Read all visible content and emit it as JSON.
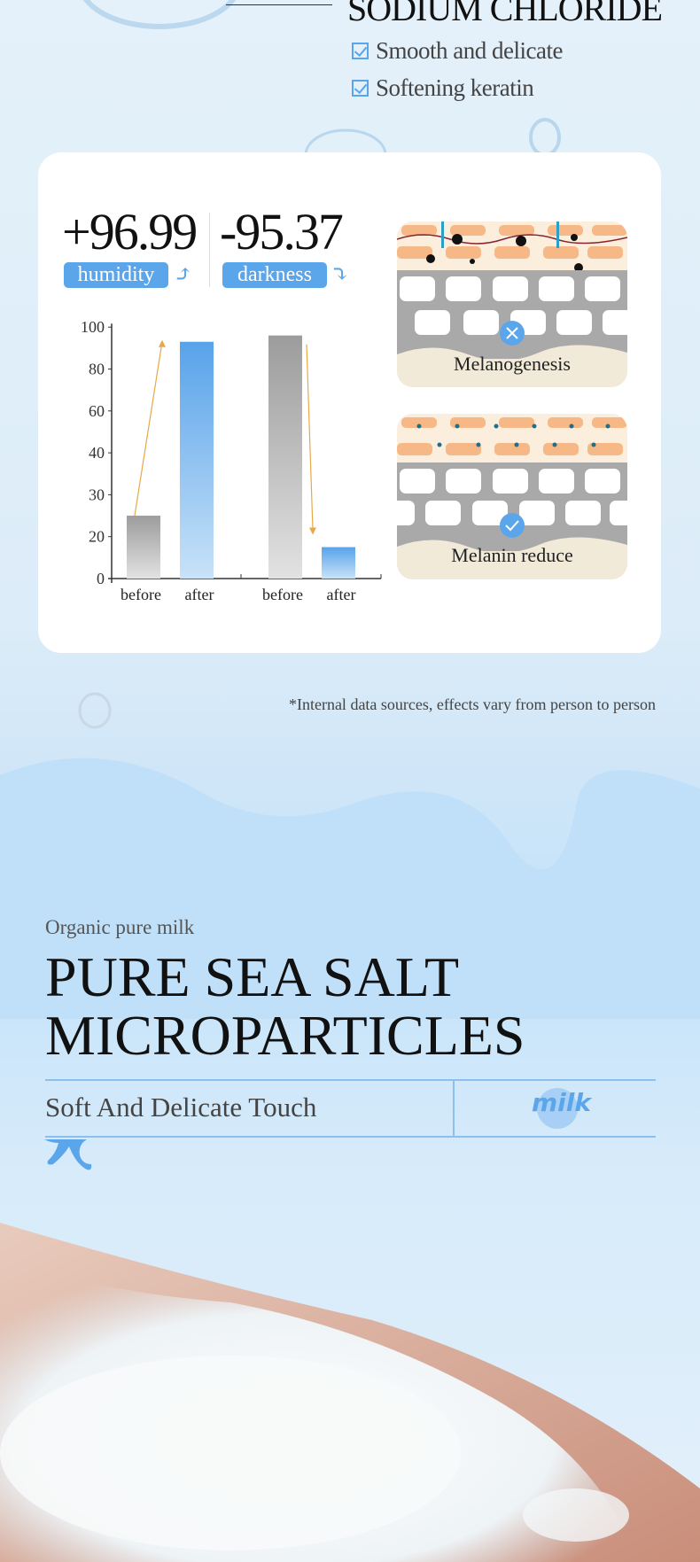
{
  "header": {
    "title": "SODIUM CHLORIDE",
    "bullets": [
      "Smooth and delicate",
      "Softening keratin"
    ]
  },
  "stats": [
    {
      "value": "+96.99",
      "label": "humidity",
      "direction": "up"
    },
    {
      "value": "-95.37",
      "label": "darkness",
      "direction": "down"
    }
  ],
  "chart_data": {
    "type": "bar",
    "yticks": [
      0,
      20,
      30,
      40,
      60,
      80,
      100
    ],
    "ylim": [
      0,
      100
    ],
    "groups": [
      {
        "categories": [
          "before",
          "after"
        ],
        "values": [
          25,
          93
        ]
      },
      {
        "categories": [
          "before",
          "after"
        ],
        "values": [
          96,
          15
        ]
      }
    ],
    "colors": {
      "before": "#a0a0a0",
      "after": "#5ba6ea",
      "arrow": "#e8a84a"
    },
    "grid": false
  },
  "illustrations": [
    {
      "label": "Melanogenesis",
      "status_icon": "x-icon"
    },
    {
      "label": "Melanin reduce",
      "status_icon": "check-icon"
    }
  ],
  "footnote": "*Internal data sources, effects vary from person to person",
  "section": {
    "eyebrow": "Organic pure milk",
    "title_line1": "PURE SEA SALT",
    "title_line2": "MICROPARTICLES",
    "subtitle": "Soft And Delicate Touch",
    "logo_text": "milk"
  },
  "colors": {
    "accent": "#5ba6ea",
    "wave": "#bfe0f8"
  }
}
